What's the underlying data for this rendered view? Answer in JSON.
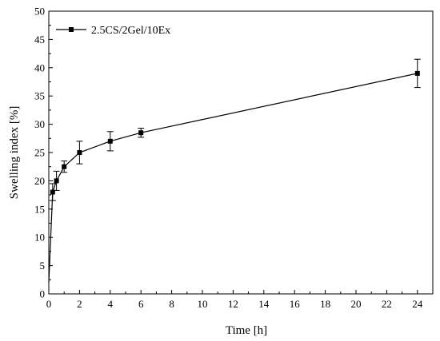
{
  "chart_data": {
    "type": "line",
    "xlabel": "Time [h]",
    "ylabel": "Swelling index [%]",
    "xlim": [
      0,
      25
    ],
    "ylim": [
      0,
      50
    ],
    "x_ticks": [
      "0",
      "2",
      "4",
      "6",
      "8",
      "10",
      "12",
      "14",
      "16",
      "18",
      "20",
      "22",
      "24"
    ],
    "y_ticks": [
      "0",
      "5",
      "10",
      "15",
      "20",
      "25",
      "30",
      "35",
      "40",
      "45",
      "50"
    ],
    "grid": false,
    "legend_position": "top-left",
    "series": [
      {
        "name": "2.5CS/2Gel/10Ex",
        "color": "#000000",
        "marker": "square",
        "x": [
          0,
          0.25,
          0.5,
          1,
          2,
          4,
          6,
          24
        ],
        "y": [
          2,
          18,
          20,
          22.5,
          25,
          27,
          28.5,
          39
        ],
        "error": [
          0,
          1.5,
          1.7,
          1,
          2,
          1.7,
          0.8,
          2.5
        ]
      }
    ]
  }
}
